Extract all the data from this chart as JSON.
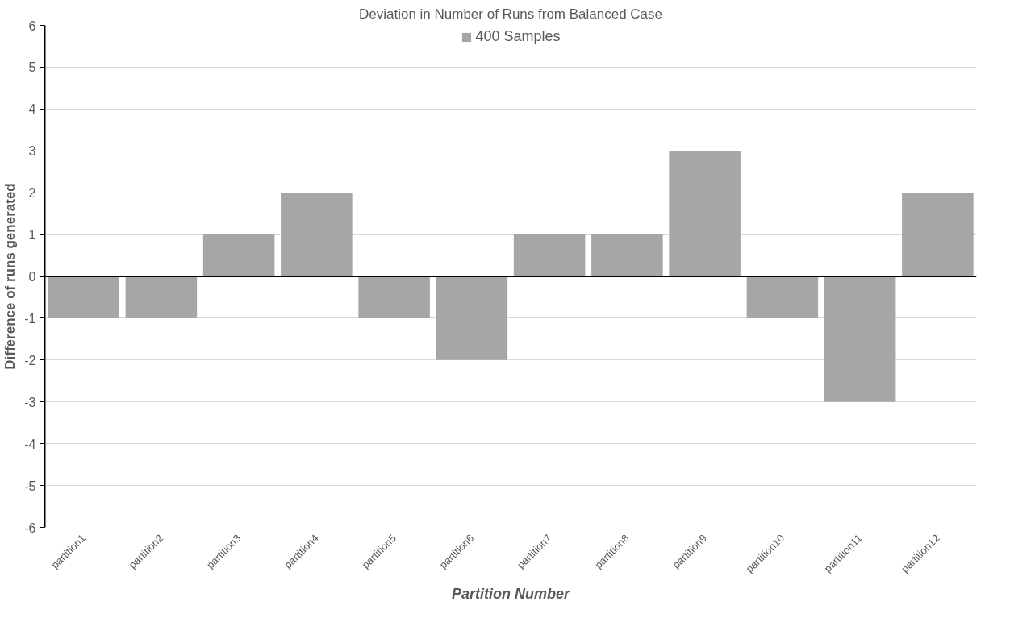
{
  "chart_data": {
    "type": "bar",
    "title": "Deviation in Number of Runs from Balanced Case",
    "xlabel": "Partition Number",
    "ylabel": "Difference of runs generated",
    "categories": [
      "partition1",
      "partition2",
      "partition3",
      "partition4",
      "partition5",
      "partition6",
      "partition7",
      "partition8",
      "partition9",
      "partition10",
      "partition11",
      "partition12"
    ],
    "series": [
      {
        "name": "400 Samples",
        "color": "#a6a6a6",
        "values": [
          -1,
          -1,
          1,
          2,
          -1,
          -2,
          1,
          1,
          3,
          -1,
          -3,
          2
        ]
      }
    ],
    "ylim": [
      -6,
      6
    ],
    "yticks": [
      -6,
      -5,
      -4,
      -3,
      -2,
      -1,
      0,
      1,
      2,
      3,
      4,
      5,
      6
    ],
    "grid": "y",
    "legend": "top"
  }
}
